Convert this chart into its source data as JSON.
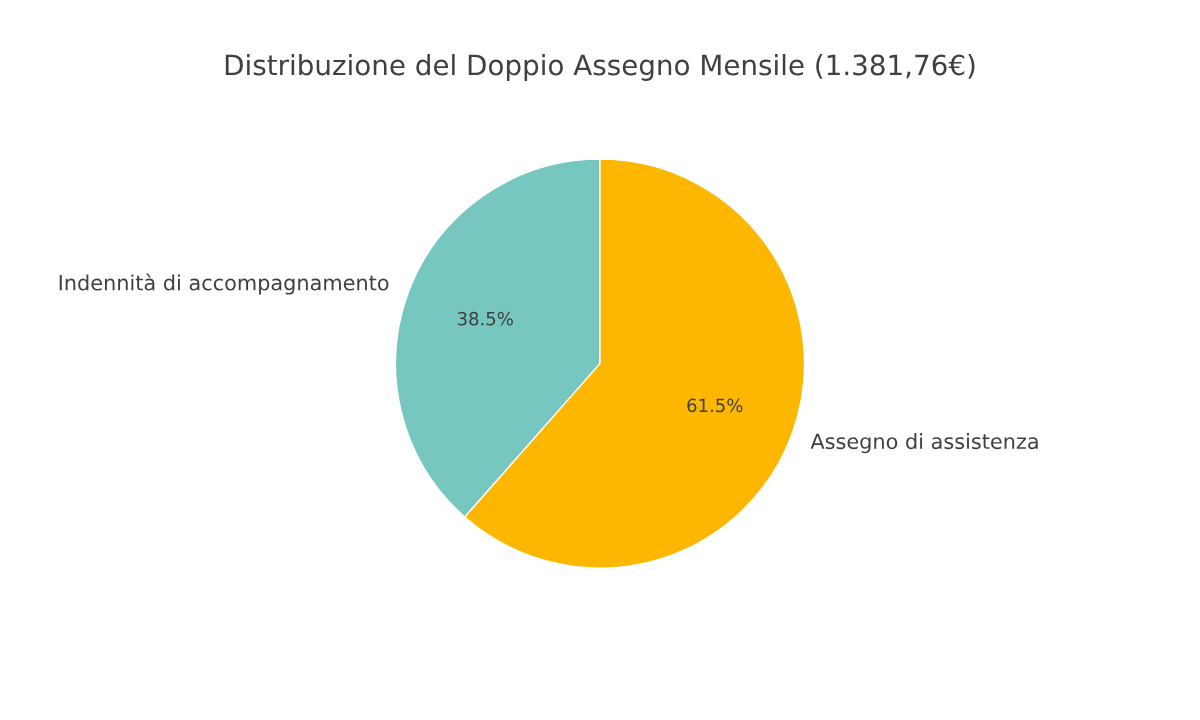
{
  "chart_data": {
    "type": "pie",
    "title": "Distribuzione del Doppio Assegno Mensile (1.381,76€)",
    "categories": [
      "Indennità di accompagnamento",
      "Assegno di assistenza"
    ],
    "values": [
      38.5,
      61.5
    ],
    "colors": [
      "#76c7c0",
      "#fdb700"
    ],
    "value_labels": [
      "38.5%",
      "61.5%"
    ]
  }
}
